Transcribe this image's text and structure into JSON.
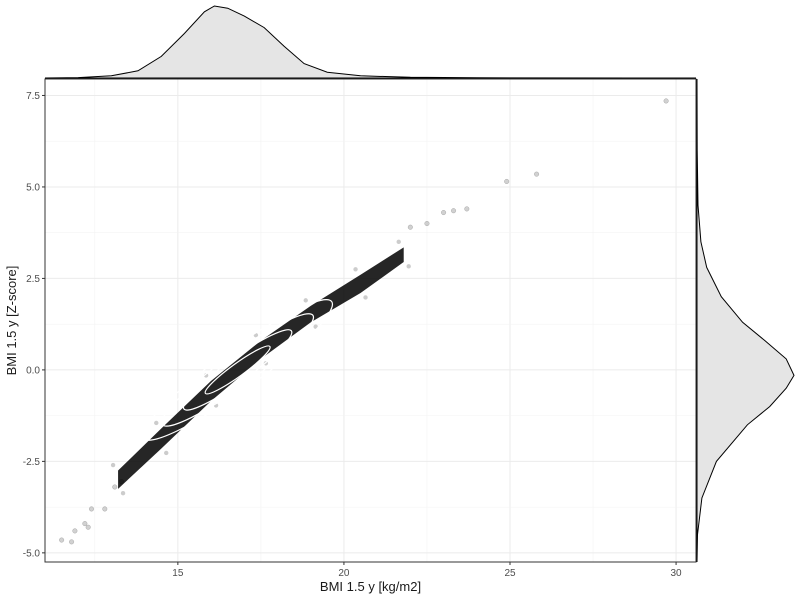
{
  "chart_data": {
    "type": "scatter",
    "title": "",
    "xlabel": "BMI 1.5 y [kg/m2]",
    "ylabel": "BMI 1.5 y [Z-score]",
    "xlim": [
      11,
      30.6
    ],
    "ylim": [
      -5.25,
      7.95
    ],
    "x_ticks": [
      15,
      20,
      25,
      30
    ],
    "y_ticks": [
      -5.0,
      -2.5,
      0.0,
      2.5,
      5.0,
      7.5
    ],
    "x_tick_labels": [
      "15",
      "20",
      "25",
      "30"
    ],
    "y_tick_labels": [
      "-5.0",
      "-2.5",
      "0.0",
      "2.5",
      "5.0",
      "7.5"
    ],
    "grid": true,
    "point_color": "#000000",
    "density_fill": "#e5e5e5",
    "contour_color": "#ffffff",
    "points": [
      {
        "x": 11.5,
        "y": -4.65
      },
      {
        "x": 11.8,
        "y": -4.7
      },
      {
        "x": 11.9,
        "y": -4.4
      },
      {
        "x": 12.2,
        "y": -4.2
      },
      {
        "x": 12.3,
        "y": -4.3
      },
      {
        "x": 12.4,
        "y": -3.8
      },
      {
        "x": 12.8,
        "y": -3.8
      },
      {
        "x": 13.1,
        "y": -3.2
      },
      {
        "x": 13.3,
        "y": -3.05
      },
      {
        "x": 22.0,
        "y": 3.9
      },
      {
        "x": 22.5,
        "y": 4.0
      },
      {
        "x": 23.0,
        "y": 4.3
      },
      {
        "x": 23.3,
        "y": 4.35
      },
      {
        "x": 23.7,
        "y": 4.4
      },
      {
        "x": 24.9,
        "y": 5.15
      },
      {
        "x": 25.8,
        "y": 5.35
      },
      {
        "x": 29.7,
        "y": 7.35
      }
    ],
    "band_upper": [
      {
        "x": 13.2,
        "y": -2.75
      },
      {
        "x": 14.5,
        "y": -1.6
      },
      {
        "x": 16.0,
        "y": -0.3
      },
      {
        "x": 17.5,
        "y": 0.8
      },
      {
        "x": 19.0,
        "y": 1.75
      },
      {
        "x": 20.5,
        "y": 2.6
      },
      {
        "x": 21.8,
        "y": 3.35
      }
    ],
    "band_lower": [
      {
        "x": 21.8,
        "y": 2.95
      },
      {
        "x": 20.5,
        "y": 2.1
      },
      {
        "x": 19.0,
        "y": 1.3
      },
      {
        "x": 17.5,
        "y": 0.3
      },
      {
        "x": 16.0,
        "y": -0.85
      },
      {
        "x": 14.5,
        "y": -2.15
      },
      {
        "x": 13.2,
        "y": -3.25
      }
    ],
    "contour_center": {
      "x": 16.8,
      "y": 0.0
    },
    "contour_angle_deg": -36,
    "contour_levels": [
      {
        "rx": 1.2,
        "ry": 0.12
      },
      {
        "rx": 2.0,
        "ry": 0.22
      },
      {
        "rx": 2.8,
        "ry": 0.3
      },
      {
        "rx": 3.5,
        "ry": 0.38
      }
    ],
    "x_marginal_density": [
      {
        "x": 11.0,
        "d": 0.0
      },
      {
        "x": 12.0,
        "d": 0.005
      },
      {
        "x": 13.0,
        "d": 0.03
      },
      {
        "x": 13.8,
        "d": 0.1
      },
      {
        "x": 14.5,
        "d": 0.3
      },
      {
        "x": 15.2,
        "d": 0.62
      },
      {
        "x": 15.8,
        "d": 0.92
      },
      {
        "x": 16.1,
        "d": 1.0
      },
      {
        "x": 16.5,
        "d": 0.97
      },
      {
        "x": 17.0,
        "d": 0.86
      },
      {
        "x": 17.6,
        "d": 0.7
      },
      {
        "x": 18.2,
        "d": 0.44
      },
      {
        "x": 18.8,
        "d": 0.2
      },
      {
        "x": 19.5,
        "d": 0.08
      },
      {
        "x": 20.5,
        "d": 0.03
      },
      {
        "x": 22.0,
        "d": 0.01
      },
      {
        "x": 24.0,
        "d": 0.003
      },
      {
        "x": 30.6,
        "d": 0.0
      }
    ],
    "y_marginal_density": [
      {
        "y": -5.25,
        "d": 0.0
      },
      {
        "y": -4.5,
        "d": 0.005
      },
      {
        "y": -3.5,
        "d": 0.05
      },
      {
        "y": -2.5,
        "d": 0.2
      },
      {
        "y": -1.5,
        "d": 0.52
      },
      {
        "y": -1.0,
        "d": 0.75
      },
      {
        "y": -0.5,
        "d": 0.92
      },
      {
        "y": -0.15,
        "d": 1.0
      },
      {
        "y": 0.3,
        "d": 0.92
      },
      {
        "y": 0.8,
        "d": 0.7
      },
      {
        "y": 1.3,
        "d": 0.47
      },
      {
        "y": 2.0,
        "d": 0.25
      },
      {
        "y": 2.8,
        "d": 0.1
      },
      {
        "y": 3.5,
        "d": 0.04
      },
      {
        "y": 4.5,
        "d": 0.01
      },
      {
        "y": 6.0,
        "d": 0.002
      },
      {
        "y": 7.95,
        "d": 0.0
      }
    ]
  }
}
